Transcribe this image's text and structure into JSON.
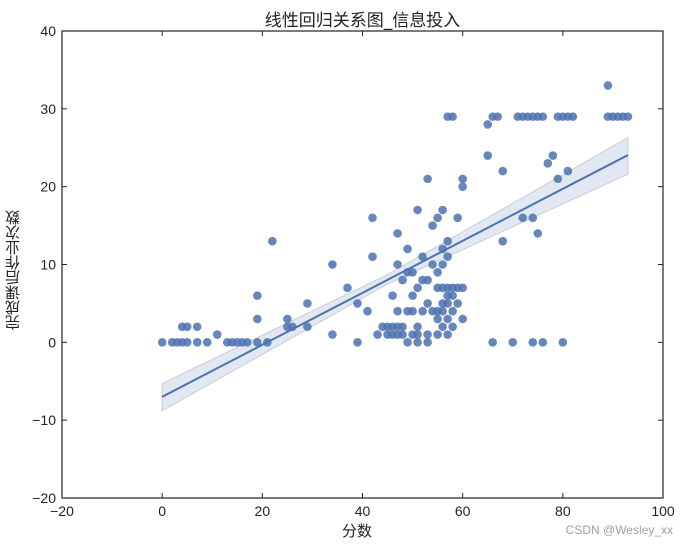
{
  "chart_data": {
    "type": "scatter",
    "title": "线性回归关系图_信息投入",
    "xlabel": "分数",
    "ylabel": "完成课后作业次数",
    "xlim": [
      -20,
      100
    ],
    "ylim": [
      -20,
      40
    ],
    "xticks": [
      -20,
      0,
      20,
      40,
      60,
      80,
      100
    ],
    "yticks": [
      -20,
      -10,
      0,
      10,
      20,
      30,
      40
    ],
    "xtick_labels": [
      "−20",
      "0",
      "20",
      "40",
      "60",
      "80",
      "100"
    ],
    "ytick_labels": [
      "−20",
      "−10",
      "0",
      "10",
      "20",
      "30",
      "40"
    ],
    "grid": false,
    "legend": null,
    "point_color": "#4c72b0",
    "regression": {
      "slope": 0.334,
      "intercept": -7.0,
      "x_range": [
        0,
        93
      ],
      "ci_lower": [
        [
          0,
          -8.8
        ],
        [
          45,
          7.5
        ],
        [
          93,
          21.6
        ]
      ],
      "ci_upper": [
        [
          0,
          -5.3
        ],
        [
          45,
          8.7
        ],
        [
          93,
          26.3
        ]
      ],
      "line_color": "#4c72b0",
      "band_color": "#dde4f0"
    },
    "points": [
      [
        0,
        0
      ],
      [
        2,
        0
      ],
      [
        3,
        0
      ],
      [
        4,
        0
      ],
      [
        5,
        0
      ],
      [
        7,
        0
      ],
      [
        9,
        0
      ],
      [
        13,
        0
      ],
      [
        14,
        0
      ],
      [
        15,
        0
      ],
      [
        16,
        0
      ],
      [
        17,
        0
      ],
      [
        19,
        0
      ],
      [
        21,
        0
      ],
      [
        4,
        2
      ],
      [
        5,
        2
      ],
      [
        7,
        2
      ],
      [
        11,
        1
      ],
      [
        19,
        3
      ],
      [
        19,
        6
      ],
      [
        22,
        13
      ],
      [
        25,
        2
      ],
      [
        25,
        3
      ],
      [
        26,
        2
      ],
      [
        29,
        2
      ],
      [
        29,
        5
      ],
      [
        34,
        1
      ],
      [
        34,
        10
      ],
      [
        37,
        7
      ],
      [
        39,
        0
      ],
      [
        39,
        5
      ],
      [
        41,
        4
      ],
      [
        42,
        11
      ],
      [
        42,
        16
      ],
      [
        43,
        1
      ],
      [
        44,
        2
      ],
      [
        45,
        1
      ],
      [
        45,
        2
      ],
      [
        46,
        1
      ],
      [
        46,
        2
      ],
      [
        46,
        6
      ],
      [
        47,
        1
      ],
      [
        47,
        2
      ],
      [
        47,
        4
      ],
      [
        47,
        10
      ],
      [
        47,
        14
      ],
      [
        48,
        1
      ],
      [
        48,
        2
      ],
      [
        48,
        8
      ],
      [
        49,
        0
      ],
      [
        49,
        4
      ],
      [
        49,
        9
      ],
      [
        49,
        12
      ],
      [
        50,
        1
      ],
      [
        50,
        4
      ],
      [
        50,
        6
      ],
      [
        50,
        9
      ],
      [
        51,
        0
      ],
      [
        51,
        1
      ],
      [
        51,
        2
      ],
      [
        51,
        7
      ],
      [
        51,
        17
      ],
      [
        52,
        4
      ],
      [
        52,
        8
      ],
      [
        52,
        11
      ],
      [
        53,
        0
      ],
      [
        53,
        1
      ],
      [
        53,
        5
      ],
      [
        53,
        8
      ],
      [
        53,
        21
      ],
      [
        54,
        4
      ],
      [
        54,
        10
      ],
      [
        54,
        15
      ],
      [
        55,
        1
      ],
      [
        55,
        3
      ],
      [
        55,
        4
      ],
      [
        55,
        7
      ],
      [
        55,
        9
      ],
      [
        55,
        16
      ],
      [
        56,
        2
      ],
      [
        56,
        4
      ],
      [
        56,
        5
      ],
      [
        56,
        7
      ],
      [
        56,
        10
      ],
      [
        56,
        12
      ],
      [
        56,
        17
      ],
      [
        57,
        1
      ],
      [
        57,
        3
      ],
      [
        57,
        5
      ],
      [
        57,
        6
      ],
      [
        57,
        7
      ],
      [
        57,
        11
      ],
      [
        57,
        13
      ],
      [
        57,
        29
      ],
      [
        58,
        2
      ],
      [
        58,
        4
      ],
      [
        58,
        6
      ],
      [
        58,
        7
      ],
      [
        58,
        29
      ],
      [
        59,
        5
      ],
      [
        59,
        7
      ],
      [
        59,
        16
      ],
      [
        60,
        3
      ],
      [
        60,
        7
      ],
      [
        60,
        20
      ],
      [
        60,
        21
      ],
      [
        65,
        24
      ],
      [
        65,
        28
      ],
      [
        66,
        0
      ],
      [
        66,
        29
      ],
      [
        67,
        29
      ],
      [
        68,
        13
      ],
      [
        68,
        22
      ],
      [
        70,
        0
      ],
      [
        71,
        29
      ],
      [
        72,
        16
      ],
      [
        72,
        29
      ],
      [
        73,
        29
      ],
      [
        74,
        0
      ],
      [
        74,
        16
      ],
      [
        74,
        29
      ],
      [
        75,
        14
      ],
      [
        75,
        29
      ],
      [
        76,
        0
      ],
      [
        76,
        29
      ],
      [
        77,
        23
      ],
      [
        78,
        24
      ],
      [
        79,
        21
      ],
      [
        79,
        29
      ],
      [
        80,
        0
      ],
      [
        80,
        29
      ],
      [
        81,
        22
      ],
      [
        81,
        29
      ],
      [
        82,
        29
      ],
      [
        89,
        29
      ],
      [
        89,
        33
      ],
      [
        90,
        29
      ],
      [
        91,
        29
      ],
      [
        92,
        29
      ],
      [
        93,
        29
      ]
    ]
  },
  "watermark": "CSDN @Wesley_xx"
}
